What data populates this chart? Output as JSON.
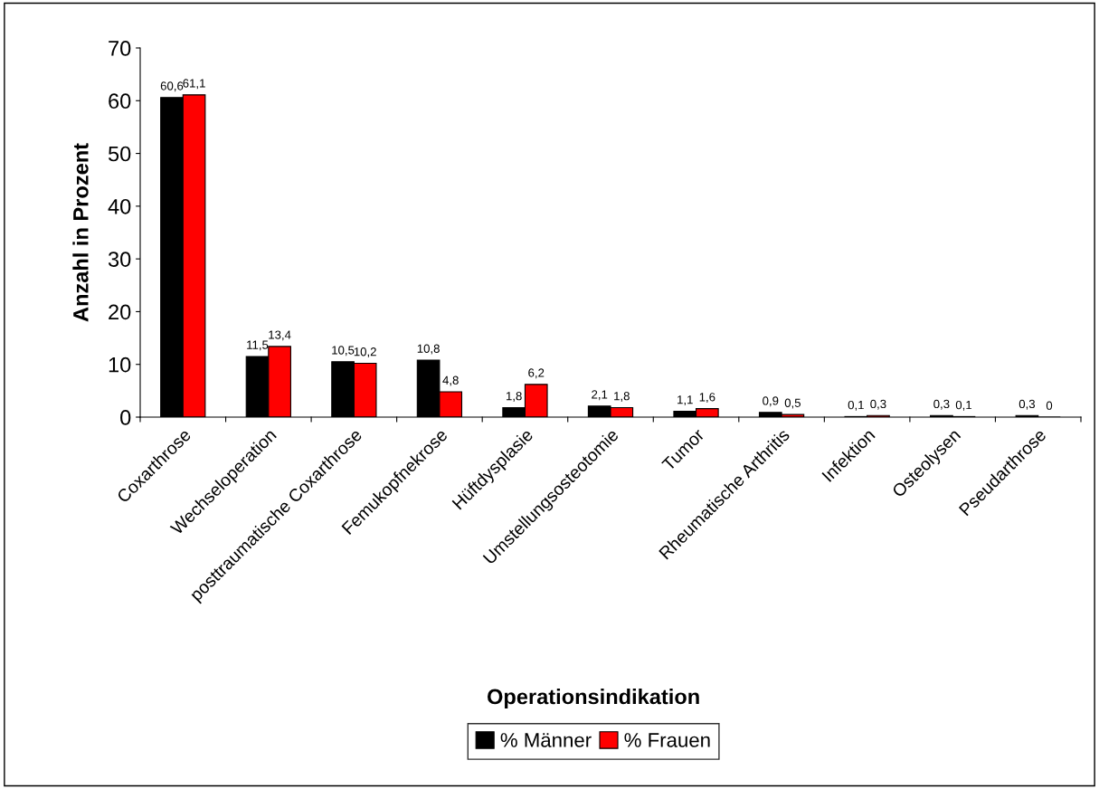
{
  "chart_data": {
    "type": "bar",
    "xlabel": "Operationsindikation",
    "ylabel": "Anzahl in Prozent",
    "categories": [
      "Coxarthrose",
      "Wechseloperation",
      "posttraumatische Coxarthrose",
      "Femukopfnekrose",
      "Hüftdysplasie",
      "Umstellungsosteotomie",
      "Tumor",
      "Rheumatische Arthritis",
      "Infektion",
      "Osteolysen",
      "Pseudarthrose"
    ],
    "series": [
      {
        "name": "% Männer",
        "color": "#000000",
        "values": [
          60.6,
          11.5,
          10.5,
          10.8,
          1.8,
          2.1,
          1.1,
          0.9,
          0.1,
          0.3,
          0.3
        ],
        "value_labels": [
          "60,6",
          "11,5",
          "10,5",
          "10,8",
          "1,8",
          "2,1",
          "1,1",
          "0,9",
          "0,1",
          "0,3",
          "0,3"
        ]
      },
      {
        "name": "% Frauen",
        "color": "#ff0000",
        "values": [
          61.1,
          13.4,
          10.2,
          4.8,
          6.2,
          1.8,
          1.6,
          0.5,
          0.3,
          0.1,
          0
        ],
        "value_labels": [
          "61,1",
          "13,4",
          "10,2",
          "4,8",
          "6,2",
          "1,8",
          "1,6",
          "0,5",
          "0,3",
          "0,1",
          "0"
        ]
      }
    ],
    "ylim": [
      0,
      70
    ],
    "yticks": [
      0,
      10,
      20,
      30,
      40,
      50,
      60,
      70
    ],
    "grid": false,
    "legend": "bottom"
  }
}
